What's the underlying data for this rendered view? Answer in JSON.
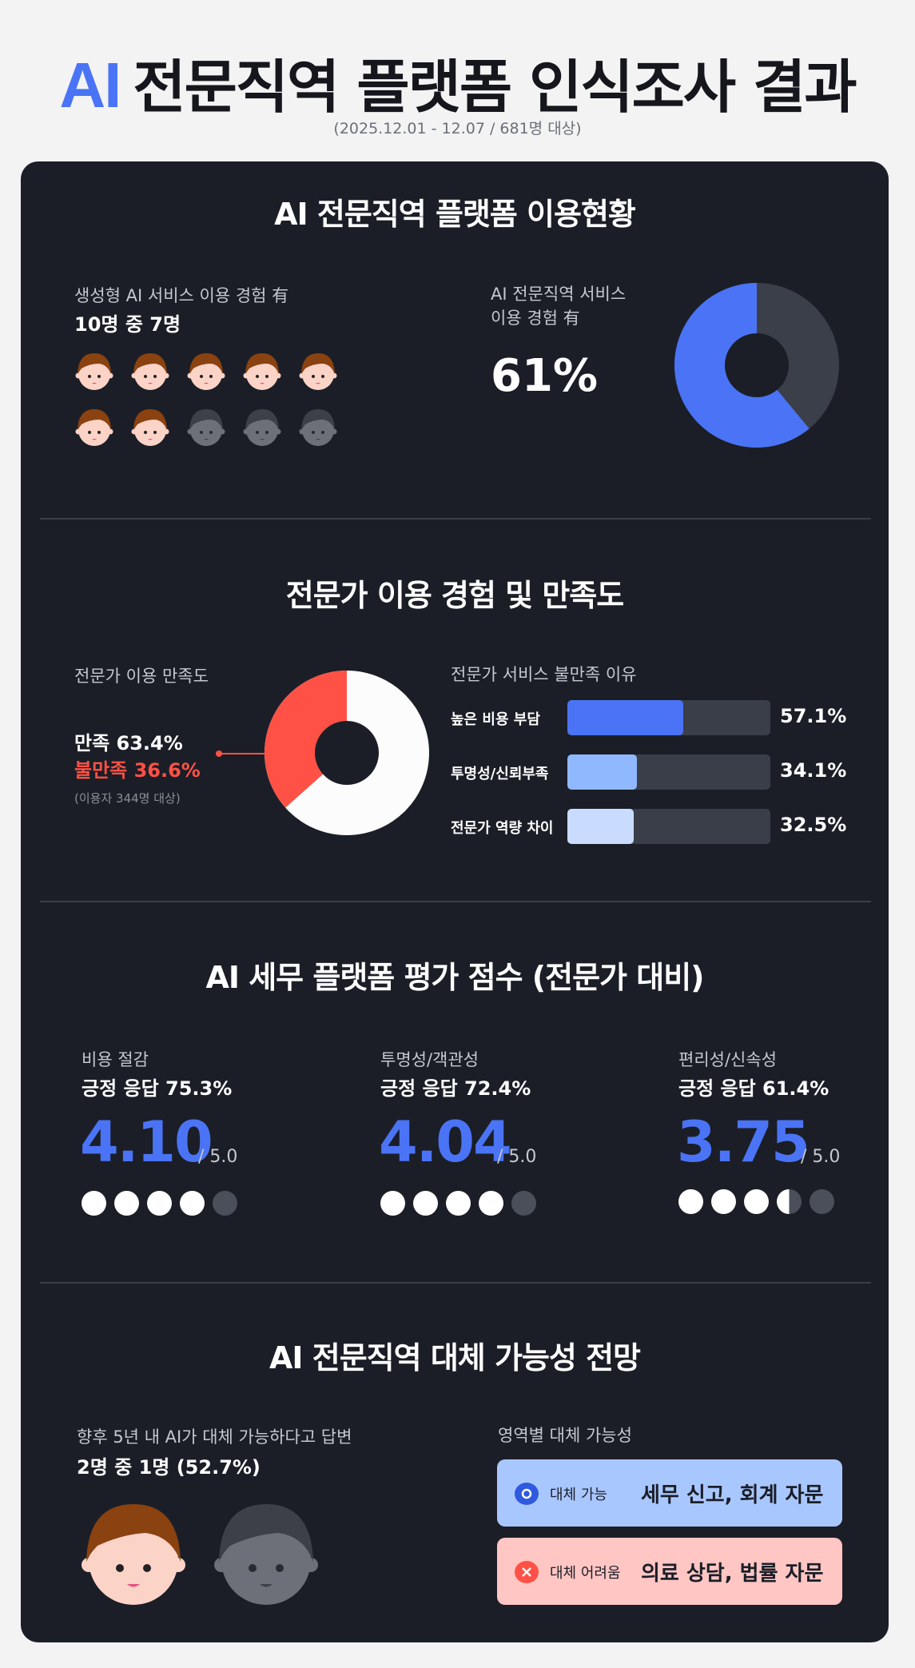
{
  "header": {
    "title_ai": "AI",
    "title_rest": "전문직역 플랫폼 인식조사 결과",
    "subtitle": "(2025.12.01 - 12.07 / 681명 대상)"
  },
  "section1": {
    "title": "AI 전문직역 플랫폼 이용현황",
    "genai_label": "생성형 AI 서비스 이용 경험 有",
    "genai_value": "10명 중 7명",
    "people_active": 7,
    "people_total": 10,
    "service_label_1": "AI 전문직역 서비스",
    "service_label_2": "이용 경험 有",
    "service_value": "61%",
    "donut_fraction": 0.61
  },
  "section2": {
    "title": "전문가 이용 경험 및 만족도",
    "satisfaction_label": "전문가 이용 만족도",
    "satisfied": "만족 63.4%",
    "dissatisfied": "불만족 36.6%",
    "note": "(이용자 344명 대상)",
    "dissatisfied_fraction": 0.366,
    "reasons_label": "전문가 서비스 불만족 이유",
    "reasons": [
      {
        "label": "높은 비용 부담",
        "value_text": "57.1%",
        "value": 57.1,
        "color": "#4a74f5"
      },
      {
        "label": "투명성/신뢰부족",
        "value_text": "34.1%",
        "value": 34.1,
        "color": "#8fb8ff"
      },
      {
        "label": "전문가 역량 차이",
        "value_text": "32.5%",
        "value": 32.5,
        "color": "#c9dcff"
      }
    ]
  },
  "section3": {
    "title": "AI 세무 플랫폼 평가 점수 (전문가 대비)",
    "items": [
      {
        "label": "비용 절감",
        "positive": "긍정 응답 75.3%",
        "score": "4.10",
        "max": "/ 5.0",
        "rating": 4.1
      },
      {
        "label": "투명성/객관성",
        "positive": "긍정 응답 72.4%",
        "score": "4.04",
        "max": "/ 5.0",
        "rating": 4.04
      },
      {
        "label": "편리성/신속성",
        "positive": "긍정 응답 61.4%",
        "score": "3.75",
        "max": "/ 5.0",
        "rating": 3.75
      }
    ]
  },
  "section4": {
    "title": "AI 전문직역 대체 가능성 전망",
    "replace_label": "향후 5년 내 AI가 대체 가능하다고 답변",
    "replace_value": "2명 중 1명 (52.7%)",
    "area_label": "영역별 대체 가능성",
    "replaceable_tag": "대체 가능",
    "replaceable_text": "세무 신고, 회계 자문",
    "hard_tag": "대체 어려움",
    "hard_text": "의료 상담, 법률 자문"
  },
  "colors": {
    "accent": "#4a74f5",
    "red": "#ff5145",
    "card": "#1b1e27"
  }
}
